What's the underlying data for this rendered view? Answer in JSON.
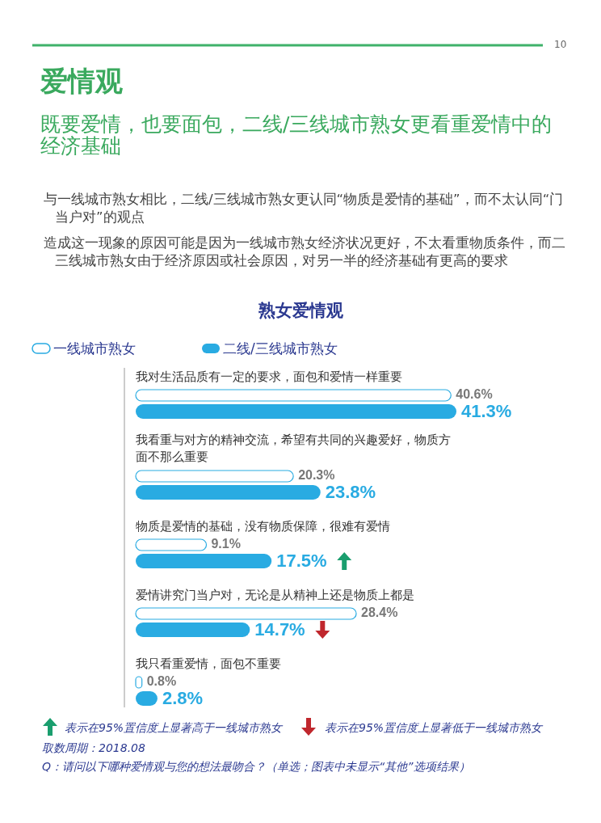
{
  "chart_data": {
    "type": "bar",
    "orientation": "horizontal",
    "title": "爱情观",
    "subtitle": "既要爱情，也要面包，二线/三线城市熟女更看重爱情中的经济基础",
    "categories": [
      "我对生活品质有一定的要求，面包和爱情一样重要",
      "我看重与对方的精神交流，希望有共同的兴趣爱好，物质方面不那么重要",
      "物质是爱情的基础，没有物质保障，很难有爱情",
      "爱情讲究门当户对，无论是从精神上还是物质上都是",
      "我只看重爱情，面包不重要"
    ],
    "series": [
      {
        "name": "一线城市熟女",
        "color": "#ffffff",
        "values": [
          40.6,
          20.3,
          9.1,
          28.4,
          0.8
        ],
        "value_labels": [
          "40.6%",
          "20.3%",
          "9.1%",
          "28.4%",
          "0.8%"
        ]
      },
      {
        "name": "二线/三线城市熟女",
        "color": "#29abe2",
        "values": [
          41.3,
          23.8,
          17.5,
          14.7,
          2.8
        ],
        "value_labels": [
          "41.3%",
          "23.8%",
          "17.5%",
          "14.7%",
          "2.8%"
        ]
      }
    ],
    "legend": "top left",
    "annotations": [
      "10",
      "与一线城市熟女相比，二线/三线城市熟女更认同“物质是爱情的基础”，而不太认同“门当户对”的观点",
      "造成这一现象的原因可能是因为一线城市熟女经济状况更好，不太看重物质条件，而二三线城市熟女由于经济原因或社会原因，对另一半的经济基础有更高的要求",
      "熟女爱情观",
      "表示在95%置信度上显著高于一线城市熟女",
      "表示在95%置信度上显著低于一线城市熟女",
      "取数周期：2018.08",
      "Q：请问以下哪种爱情观与您的想法最吻合？（单选；图表中未显示“其他”选项结果）"
    ]
  }
}
